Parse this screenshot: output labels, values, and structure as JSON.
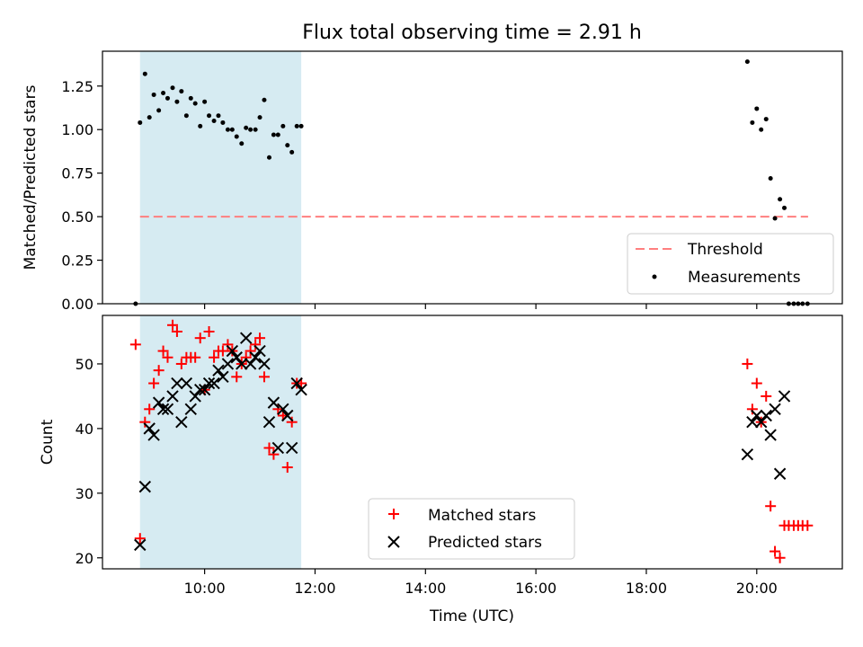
{
  "title": "Flux total observing time = 2.91 h",
  "colors": {
    "threshold": "#ff7f7f",
    "measurements": "#000000",
    "matched": "#ff0000",
    "predicted": "#000000",
    "span": "#add8e6"
  },
  "chart_data": [
    {
      "type": "scatter",
      "ylabel": "Matched/Predicted stars",
      "xlabel": "",
      "xlim": [
        8.15,
        21.55
      ],
      "ylim": [
        0.0,
        1.45
      ],
      "yticks": [
        "0.00",
        "0.25",
        "0.50",
        "0.75",
        "1.00",
        "1.25"
      ],
      "legend_position": "lower-right",
      "shaded_span": [
        8.83,
        11.75
      ],
      "threshold": {
        "name": "Threshold",
        "value": 0.5,
        "x": [
          8.83,
          20.93
        ]
      },
      "series": [
        {
          "name": "Measurements",
          "marker": "dot",
          "x": [
            8.75,
            8.83,
            8.92,
            9.0,
            9.08,
            9.17,
            9.25,
            9.33,
            9.42,
            9.5,
            9.58,
            9.67,
            9.75,
            9.83,
            9.92,
            10.0,
            10.08,
            10.17,
            10.25,
            10.33,
            10.42,
            10.5,
            10.58,
            10.67,
            10.75,
            10.83,
            10.92,
            11.0,
            11.08,
            11.17,
            11.25,
            11.33,
            11.42,
            11.5,
            11.58,
            11.67,
            11.75,
            19.83,
            19.92,
            20.0,
            20.08,
            20.17,
            20.25,
            20.33,
            20.42,
            20.5,
            20.58,
            20.67,
            20.75,
            20.83,
            20.92
          ],
          "y": [
            0.0,
            1.04,
            1.32,
            1.07,
            1.2,
            1.11,
            1.21,
            1.18,
            1.24,
            1.16,
            1.22,
            1.08,
            1.18,
            1.15,
            1.02,
            1.16,
            1.08,
            1.05,
            1.08,
            1.04,
            1.0,
            1.0,
            0.96,
            0.92,
            1.01,
            1.0,
            1.0,
            1.07,
            1.17,
            0.84,
            0.97,
            0.97,
            1.02,
            0.91,
            0.87,
            1.02,
            1.02,
            1.39,
            1.04,
            1.12,
            1.0,
            1.06,
            0.72,
            0.49,
            0.6,
            0.55,
            0.0,
            0.0,
            0.0,
            0.0,
            0.0
          ]
        }
      ]
    },
    {
      "type": "scatter",
      "ylabel": "Count",
      "xlabel": "Time (UTC)",
      "xlim": [
        8.15,
        21.55
      ],
      "ylim": [
        18.3,
        57.5
      ],
      "xticks": [
        "10:00",
        "12:00",
        "14:00",
        "16:00",
        "18:00",
        "20:00"
      ],
      "xtick_values": [
        10,
        12,
        14,
        16,
        18,
        20
      ],
      "yticks": [
        "20",
        "30",
        "40",
        "50"
      ],
      "legend_position": "lower-center",
      "shaded_span": [
        8.83,
        11.75
      ],
      "series": [
        {
          "name": "Matched stars",
          "marker": "plus",
          "x": [
            8.75,
            8.83,
            8.92,
            9.0,
            9.08,
            9.17,
            9.25,
            9.33,
            9.42,
            9.5,
            9.58,
            9.67,
            9.75,
            9.83,
            9.92,
            10.0,
            10.08,
            10.17,
            10.25,
            10.33,
            10.42,
            10.5,
            10.58,
            10.67,
            10.75,
            10.83,
            10.92,
            11.0,
            11.08,
            11.17,
            11.25,
            11.33,
            11.42,
            11.5,
            11.58,
            11.67,
            11.75,
            19.83,
            19.92,
            20.0,
            20.08,
            20.17,
            20.25,
            20.33,
            20.42,
            20.5,
            20.58,
            20.67,
            20.75,
            20.83,
            20.92
          ],
          "y": [
            53,
            23,
            41,
            43,
            47,
            49,
            52,
            51,
            56,
            55,
            50,
            51,
            51,
            51,
            54,
            46,
            55,
            51,
            52,
            52,
            53,
            52,
            48,
            50,
            51,
            52,
            53,
            54,
            48,
            37,
            36,
            43,
            42,
            34,
            41,
            47,
            47,
            50,
            43,
            47,
            41,
            45,
            28,
            21,
            20,
            25,
            25,
            25,
            25,
            25,
            25
          ]
        },
        {
          "name": "Predicted stars",
          "marker": "x",
          "x": [
            8.83,
            8.92,
            9.0,
            9.08,
            9.17,
            9.25,
            9.33,
            9.42,
            9.5,
            9.58,
            9.67,
            9.75,
            9.83,
            9.92,
            10.0,
            10.08,
            10.17,
            10.25,
            10.33,
            10.42,
            10.5,
            10.58,
            10.67,
            10.75,
            10.83,
            10.92,
            11.0,
            11.08,
            11.17,
            11.25,
            11.33,
            11.42,
            11.5,
            11.58,
            11.67,
            11.75,
            19.83,
            19.92,
            20.0,
            20.08,
            20.17,
            20.25,
            20.33,
            20.42,
            20.5
          ],
          "y": [
            22,
            31,
            40,
            39,
            44,
            43,
            43,
            45,
            47,
            41,
            47,
            43,
            45,
            46,
            46,
            47,
            47,
            49,
            48,
            50,
            52,
            51,
            50,
            54,
            50,
            51,
            52,
            50,
            41,
            44,
            37,
            43,
            42,
            37,
            47,
            46,
            36,
            41,
            42,
            41,
            42,
            39,
            43,
            33,
            45
          ]
        }
      ]
    }
  ]
}
